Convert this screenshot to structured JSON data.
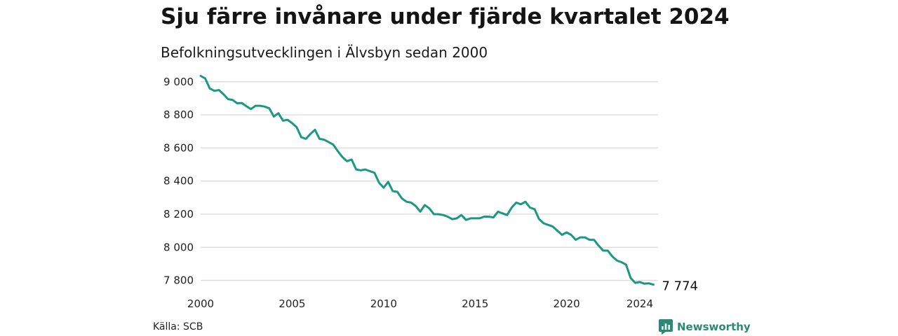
{
  "header": {
    "title": "Sju färre invånare under fjärde kvartalet 2024",
    "subtitle": "Befolkningsutvecklingen i Älvsbyn sedan 2000"
  },
  "footer": {
    "source": "Källa: SCB",
    "brand": "Newsworthy"
  },
  "colors": {
    "line": "#1a9883",
    "grid": "#dadada",
    "brand": "#2a8a74"
  },
  "chart_data": {
    "type": "line",
    "title": "Sju färre invånare under fjärde kvartalet 2024",
    "subtitle": "Befolkningsutvecklingen i Älvsbyn sedan 2000",
    "xlabel": "",
    "ylabel": "",
    "x_frequency": "quarterly",
    "x_start": 2000,
    "xlim": [
      2000,
      2025
    ],
    "ylim": [
      7760,
      9050
    ],
    "x_ticks": [
      "2000",
      "2005",
      "2010",
      "2015",
      "2020",
      "2024"
    ],
    "y_ticks": [
      "9 000",
      "8 800",
      "8 600",
      "8 400",
      "8 200",
      "8 000",
      "7 800"
    ],
    "y_tick_values": [
      9000,
      8800,
      8600,
      8400,
      8200,
      8000,
      7800
    ],
    "grid": true,
    "legend": "none",
    "end_label": "7 774",
    "series": [
      {
        "values": [
          9035,
          9020,
          8960,
          8945,
          8950,
          8925,
          8895,
          8890,
          8870,
          8872,
          8852,
          8835,
          8855,
          8855,
          8850,
          8840,
          8790,
          8810,
          8765,
          8770,
          8750,
          8725,
          8665,
          8655,
          8685,
          8710,
          8655,
          8650,
          8635,
          8620,
          8580,
          8545,
          8520,
          8530,
          8470,
          8465,
          8470,
          8460,
          8450,
          8390,
          8360,
          8395,
          8340,
          8335,
          8295,
          8275,
          8270,
          8250,
          8215,
          8255,
          8235,
          8200,
          8200,
          8195,
          8185,
          8170,
          8175,
          8195,
          8165,
          8175,
          8175,
          8175,
          8185,
          8185,
          8180,
          8215,
          8205,
          8195,
          8240,
          8270,
          8260,
          8275,
          8240,
          8230,
          8170,
          8145,
          8135,
          8125,
          8100,
          8075,
          8090,
          8075,
          8045,
          8060,
          8060,
          8045,
          8045,
          8010,
          7980,
          7980,
          7945,
          7920,
          7910,
          7895,
          7815,
          7785,
          7790,
          7780,
          7782,
          7774
        ]
      }
    ]
  }
}
